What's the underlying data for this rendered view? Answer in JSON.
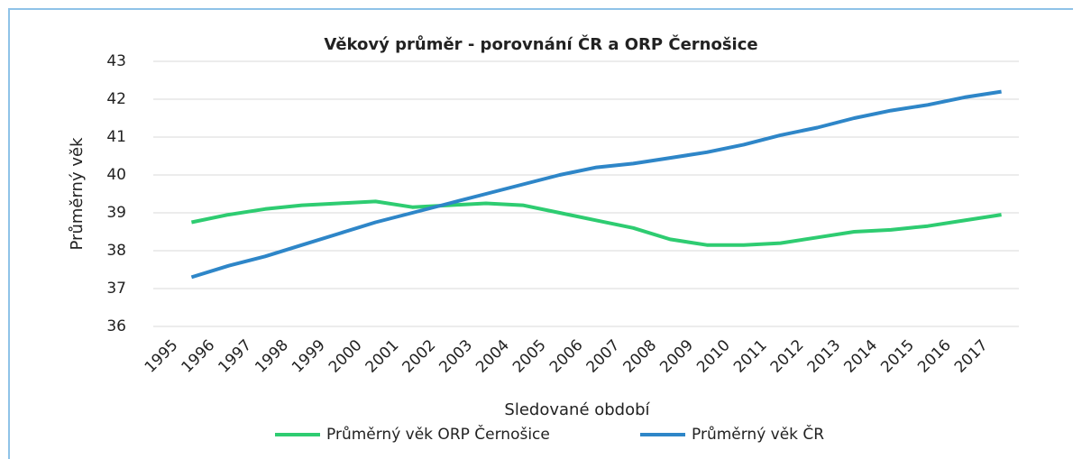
{
  "chart_data": {
    "type": "line",
    "title": "Věkový průměr - porovnání ČR a ORP Černošice",
    "x_label": "Sledované období",
    "y_label": "Průměrný věk",
    "categories": [
      "1995",
      "1996",
      "1997",
      "1998",
      "1999",
      "2000",
      "2001",
      "2002",
      "2003",
      "2004",
      "2005",
      "2006",
      "2007",
      "2008",
      "2009",
      "2010",
      "2011",
      "2012",
      "2013",
      "2014",
      "2015",
      "2016",
      "2017"
    ],
    "series": [
      {
        "name": "Průměrný věk ORP Černošice",
        "color": "#2ecc71",
        "values": [
          38.75,
          38.95,
          39.1,
          39.2,
          39.25,
          39.3,
          39.15,
          39.2,
          39.25,
          39.2,
          39.0,
          38.8,
          38.6,
          38.3,
          38.15,
          38.15,
          38.2,
          38.35,
          38.5,
          38.55,
          38.65,
          38.8,
          38.95
        ]
      },
      {
        "name": "Průměrný věk ČR",
        "color": "#2e86c8",
        "values": [
          37.3,
          37.6,
          37.85,
          38.15,
          38.45,
          38.75,
          39.0,
          39.25,
          39.5,
          39.75,
          40.0,
          40.2,
          40.3,
          40.45,
          40.6,
          40.8,
          41.05,
          41.25,
          41.5,
          41.7,
          41.85,
          42.05,
          42.2
        ]
      }
    ],
    "ylim": [
      36,
      43
    ],
    "yticks": [
      36,
      37,
      38,
      39,
      40,
      41,
      42,
      43
    ],
    "grid": true,
    "legend": "bottom"
  }
}
